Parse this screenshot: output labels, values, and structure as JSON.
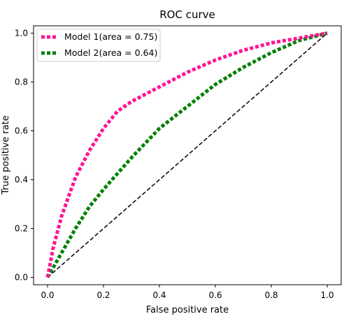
{
  "chart_data": {
    "type": "line",
    "title": "ROC curve",
    "xlabel": "False positive rate",
    "ylabel": "True positive rate",
    "xlim": [
      -0.05,
      1.05
    ],
    "ylim": [
      -0.03,
      1.03
    ],
    "xticks": [
      0.0,
      0.2,
      0.4,
      0.6,
      0.8,
      1.0
    ],
    "xtick_labels": [
      "0.0",
      "0.2",
      "0.4",
      "0.6",
      "0.8",
      "1.0"
    ],
    "yticks": [
      0.0,
      0.2,
      0.4,
      0.6,
      0.8,
      1.0
    ],
    "ytick_labels": [
      "0.0",
      "0.2",
      "0.4",
      "0.6",
      "0.8",
      "1.0"
    ],
    "grid": false,
    "legend_position": "top-left",
    "series": [
      {
        "name": "Model 1(area = 0.75)",
        "color": "#ff1493",
        "style": "dotted",
        "x": [
          0.0,
          0.01,
          0.02,
          0.05,
          0.1,
          0.15,
          0.2,
          0.25,
          0.3,
          0.35,
          0.4,
          0.45,
          0.5,
          0.6,
          0.7,
          0.8,
          0.9,
          1.0
        ],
        "y": [
          0.0,
          0.06,
          0.12,
          0.25,
          0.41,
          0.52,
          0.61,
          0.68,
          0.72,
          0.75,
          0.78,
          0.81,
          0.84,
          0.89,
          0.93,
          0.96,
          0.98,
          1.0
        ]
      },
      {
        "name": "Model 2(area = 0.64)",
        "color": "#008000",
        "style": "dotted",
        "x": [
          0.0,
          0.02,
          0.05,
          0.1,
          0.15,
          0.2,
          0.3,
          0.4,
          0.5,
          0.6,
          0.7,
          0.8,
          0.9,
          1.0
        ],
        "y": [
          0.0,
          0.04,
          0.1,
          0.2,
          0.29,
          0.36,
          0.49,
          0.61,
          0.7,
          0.79,
          0.86,
          0.92,
          0.97,
          1.0
        ]
      },
      {
        "name": "",
        "color": "#000000",
        "style": "dashed",
        "x": [
          0.0,
          1.0
        ],
        "y": [
          0.0,
          1.0
        ]
      }
    ]
  }
}
